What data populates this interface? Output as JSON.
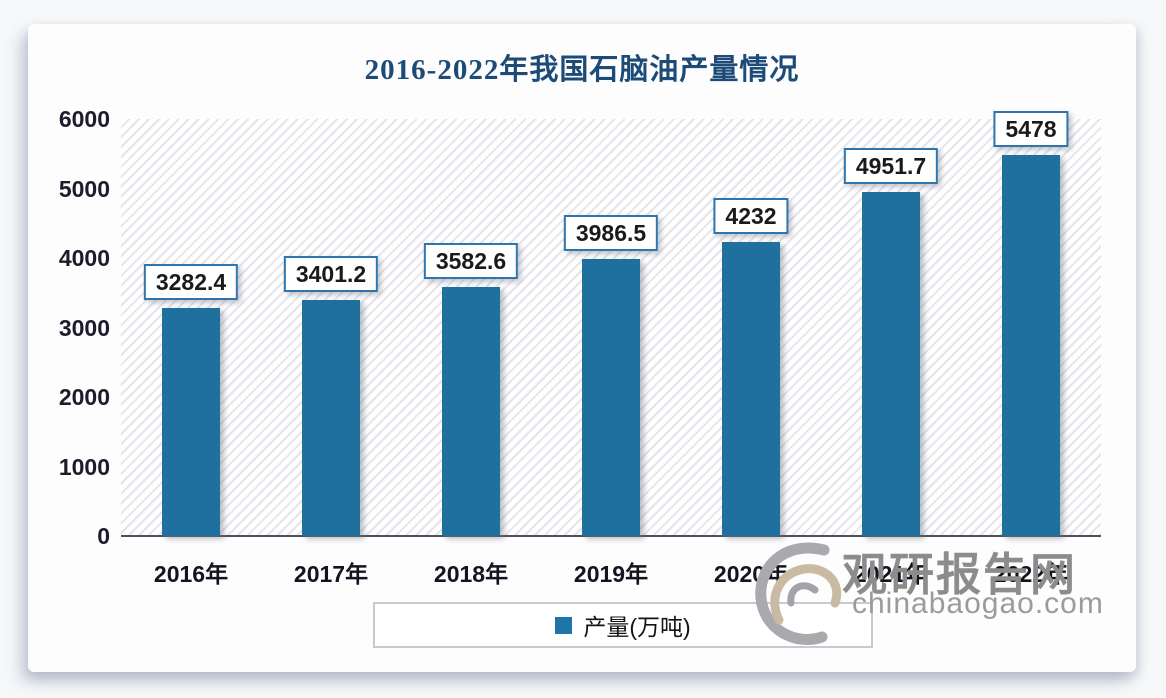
{
  "chart_data": {
    "type": "bar",
    "title": "2016-2022年我国石脑油产量情况",
    "categories": [
      "2016年",
      "2017年",
      "2018年",
      "2019年",
      "2020年",
      "2021年",
      "2022年"
    ],
    "series": [
      {
        "name": "产量(万吨)",
        "values": [
          3282.4,
          3401.2,
          3582.6,
          3986.5,
          4232,
          4951.7,
          5478
        ],
        "value_labels": [
          "3282.4",
          "3401.2",
          "3582.6",
          "3986.5",
          "4232",
          "4951.7",
          "5478"
        ]
      }
    ],
    "xlabel": "",
    "ylabel": "",
    "ylim": [
      0,
      6000
    ],
    "ytick_step": 1000,
    "ytick_labels": [
      "0",
      "1000",
      "2000",
      "3000",
      "4000",
      "5000",
      "6000"
    ],
    "grid": false,
    "legend_position": "bottom",
    "plot_background": "diagonal-hatch",
    "colors": {
      "bar": "#20709f",
      "title": "#1d4b78",
      "value_label_border": "#2e74ad",
      "legend_marker": "#1f74a8"
    }
  },
  "watermark": {
    "site_name": "观研报告网",
    "site_url": "chinabaogao.com",
    "logo": "swirl-logo-icon"
  }
}
